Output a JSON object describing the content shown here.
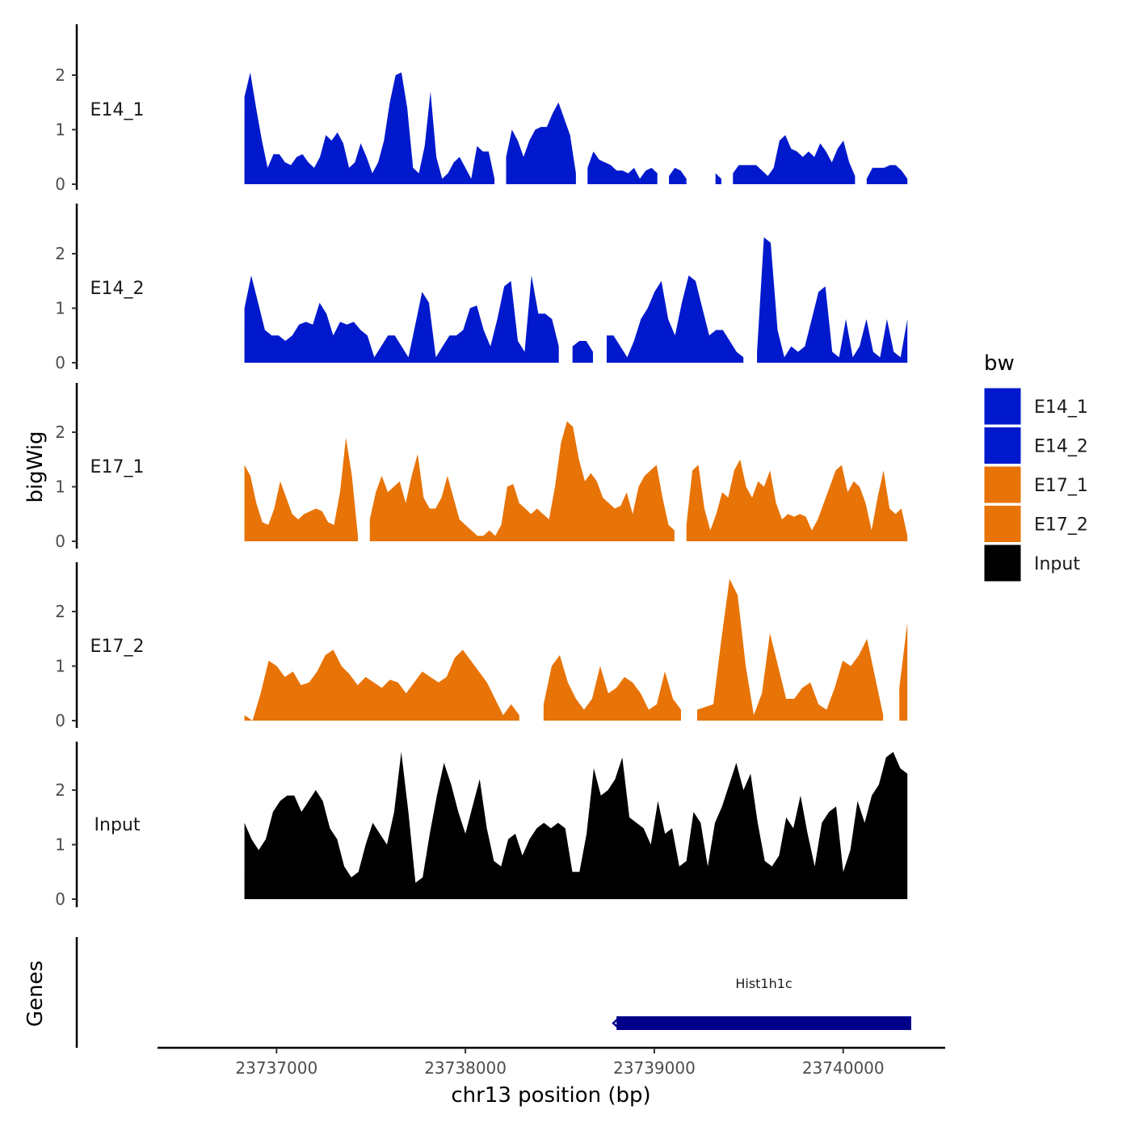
{
  "chart_data": {
    "type": "area",
    "ylabel": "bigWig",
    "xlabel": "chr13 position (bp)",
    "xlim": [
      23736370,
      23740540
    ],
    "data_xrange": [
      23736830,
      23740340
    ],
    "xticks": [
      23737000,
      23738000,
      23739000,
      23740000
    ],
    "xtick_labels": [
      "23737000",
      "23738000",
      "23739000",
      "23740000"
    ],
    "ylim": [
      0,
      2.9
    ],
    "yticks": [
      0,
      1,
      2
    ],
    "ytick_labels": [
      "0",
      "1",
      "2"
    ],
    "legend": {
      "title": "bw",
      "position": "right",
      "entries": [
        {
          "label": "E14_1",
          "color": "#0019CD"
        },
        {
          "label": "E14_2",
          "color": "#0019CD"
        },
        {
          "label": "E17_1",
          "color": "#E87306"
        },
        {
          "label": "E17_2",
          "color": "#E87306"
        },
        {
          "label": "Input",
          "color": "#000000"
        }
      ]
    },
    "series": [
      {
        "name": "E14_1",
        "color": "#0019CD",
        "values": [
          1.6,
          2.05,
          1.4,
          0.8,
          0.3,
          0.55,
          0.55,
          0.4,
          0.35,
          0.5,
          0.55,
          0.4,
          0.3,
          0.5,
          0.9,
          0.8,
          0.95,
          0.75,
          0.3,
          0.4,
          0.75,
          0.5,
          0.2,
          0.4,
          0.8,
          1.5,
          2.0,
          2.05,
          1.4,
          0.3,
          0.2,
          0.7,
          1.7,
          0.5,
          0.1,
          0.2,
          0.4,
          0.5,
          0.3,
          0.1,
          0.7,
          0.6,
          0.6,
          0.1,
          null,
          0.5,
          1.0,
          0.8,
          0.5,
          0.8,
          1.0,
          1.05,
          1.05,
          1.3,
          1.5,
          1.2,
          0.9,
          0.2,
          null,
          0.3,
          0.6,
          0.45,
          0.4,
          0.35,
          0.25,
          0.25,
          0.2,
          0.3,
          0.1,
          0.25,
          0.3,
          0.2,
          null,
          0.15,
          0.3,
          0.25,
          0.1,
          null,
          null,
          null,
          null,
          0.2,
          0.1,
          null,
          0.2,
          0.35,
          0.35,
          0.35,
          0.35,
          0.25,
          0.15,
          0.3,
          0.8,
          0.9,
          0.65,
          0.6,
          0.5,
          0.6,
          0.5,
          0.75,
          0.6,
          0.4,
          0.65,
          0.8,
          0.4,
          0.15,
          null,
          0.1,
          0.3,
          0.3,
          0.3,
          0.35,
          0.35,
          0.25,
          0.1
        ]
      },
      {
        "name": "E14_2",
        "color": "#0019CD",
        "values": [
          1.0,
          1.6,
          1.1,
          0.6,
          0.5,
          0.5,
          0.4,
          0.5,
          0.7,
          0.75,
          0.7,
          1.1,
          0.9,
          0.5,
          0.75,
          0.7,
          0.75,
          0.6,
          0.5,
          0.1,
          0.3,
          0.5,
          0.5,
          0.3,
          0.1,
          0.7,
          1.3,
          1.1,
          0.1,
          0.3,
          0.5,
          0.5,
          0.6,
          1.0,
          1.05,
          0.6,
          0.3,
          0.8,
          1.4,
          1.5,
          0.4,
          0.2,
          1.6,
          0.9,
          0.9,
          0.8,
          0.3,
          null,
          0.3,
          0.4,
          0.4,
          0.2,
          null,
          0.5,
          0.5,
          0.3,
          0.1,
          0.4,
          0.8,
          1.0,
          1.3,
          1.5,
          0.8,
          0.5,
          1.1,
          1.6,
          1.5,
          1.0,
          0.5,
          0.6,
          0.6,
          0.4,
          0.2,
          0.1,
          null,
          0.2,
          2.3,
          2.2,
          0.6,
          0.1,
          0.3,
          0.2,
          0.3,
          0.8,
          1.3,
          1.4,
          0.2,
          0.1,
          0.8,
          0.1,
          0.3,
          0.8,
          0.2,
          0.1,
          0.8,
          0.2,
          0.1,
          0.8
        ]
      },
      {
        "name": "E17_1",
        "color": "#E87306",
        "values": [
          1.4,
          1.2,
          0.7,
          0.35,
          0.3,
          0.6,
          1.1,
          0.8,
          0.5,
          0.4,
          0.5,
          0.55,
          0.6,
          0.55,
          0.35,
          0.3,
          0.9,
          1.9,
          1.2,
          0.1,
          null,
          0.4,
          0.9,
          1.2,
          0.9,
          1.0,
          1.1,
          0.7,
          1.2,
          1.6,
          0.8,
          0.6,
          0.6,
          0.8,
          1.2,
          0.8,
          0.4,
          0.3,
          0.2,
          0.1,
          0.1,
          0.2,
          0.1,
          0.3,
          1.0,
          1.05,
          0.7,
          0.6,
          0.5,
          0.6,
          0.5,
          0.4,
          1.0,
          1.8,
          2.2,
          2.1,
          1.5,
          1.1,
          1.25,
          1.1,
          0.8,
          0.7,
          0.6,
          0.65,
          0.9,
          0.5,
          1.0,
          1.2,
          1.3,
          1.4,
          0.8,
          0.3,
          0.2,
          null,
          0.3,
          1.3,
          1.4,
          0.6,
          0.2,
          0.5,
          0.9,
          0.8,
          1.3,
          1.5,
          1.0,
          0.8,
          1.1,
          1.0,
          1.3,
          0.7,
          0.4,
          0.5,
          0.45,
          0.5,
          0.45,
          0.2,
          0.4,
          0.7,
          1.0,
          1.3,
          1.4,
          0.9,
          1.1,
          1.0,
          0.7,
          0.2,
          0.8,
          1.3,
          0.6,
          0.5,
          0.6,
          0.1
        ]
      },
      {
        "name": "E17_2",
        "color": "#E87306",
        "values": [
          0.1,
          0.0,
          0.5,
          1.1,
          1.0,
          0.8,
          0.9,
          0.65,
          0.7,
          0.9,
          1.2,
          1.3,
          1.0,
          0.85,
          0.65,
          0.8,
          0.7,
          0.6,
          0.75,
          0.7,
          0.5,
          0.7,
          0.9,
          0.8,
          0.7,
          0.8,
          1.15,
          1.3,
          1.1,
          0.9,
          0.7,
          0.4,
          0.1,
          0.3,
          0.1,
          null,
          null,
          0.3,
          1.0,
          1.2,
          0.7,
          0.4,
          0.2,
          0.4,
          1.0,
          0.5,
          0.6,
          0.8,
          0.7,
          0.5,
          0.2,
          0.3,
          0.9,
          0.4,
          0.2,
          null,
          0.2,
          0.25,
          0.3,
          1.5,
          2.6,
          2.3,
          1.0,
          0.1,
          0.5,
          1.6,
          1.0,
          0.4,
          0.4,
          0.6,
          0.7,
          0.3,
          0.2,
          0.6,
          1.1,
          1.0,
          1.2,
          1.5,
          0.8,
          0.1,
          null,
          0.6,
          1.8
        ]
      },
      {
        "name": "Input",
        "color": "#000000",
        "values": [
          1.4,
          1.1,
          0.9,
          1.1,
          1.6,
          1.8,
          1.9,
          1.9,
          1.6,
          1.8,
          2.0,
          1.8,
          1.3,
          1.1,
          0.6,
          0.4,
          0.5,
          1.0,
          1.4,
          1.2,
          1.0,
          1.6,
          2.7,
          1.6,
          0.3,
          0.4,
          1.2,
          1.9,
          2.5,
          2.1,
          1.6,
          1.2,
          1.7,
          2.2,
          1.3,
          0.7,
          0.6,
          1.1,
          1.2,
          0.8,
          1.1,
          1.3,
          1.4,
          1.3,
          1.4,
          1.3,
          0.5,
          0.5,
          1.2,
          2.4,
          1.9,
          2.0,
          2.2,
          2.6,
          1.5,
          1.4,
          1.3,
          1.0,
          1.8,
          1.2,
          1.3,
          0.6,
          0.7,
          1.6,
          1.4,
          0.6,
          1.4,
          1.7,
          2.1,
          2.5,
          2.0,
          2.3,
          1.4,
          0.7,
          0.6,
          0.8,
          1.5,
          1.3,
          1.9,
          1.2,
          0.6,
          1.4,
          1.6,
          1.7,
          0.5,
          0.9,
          1.8,
          1.4,
          1.9,
          2.1,
          2.6,
          2.7,
          2.4,
          2.3
        ]
      }
    ],
    "gene_track": {
      "ylabel": "Genes",
      "genes": [
        {
          "name": "Hist1h1c",
          "start": 23738800,
          "end": 23740360,
          "color": "#00008B",
          "strand": "-"
        }
      ]
    }
  }
}
